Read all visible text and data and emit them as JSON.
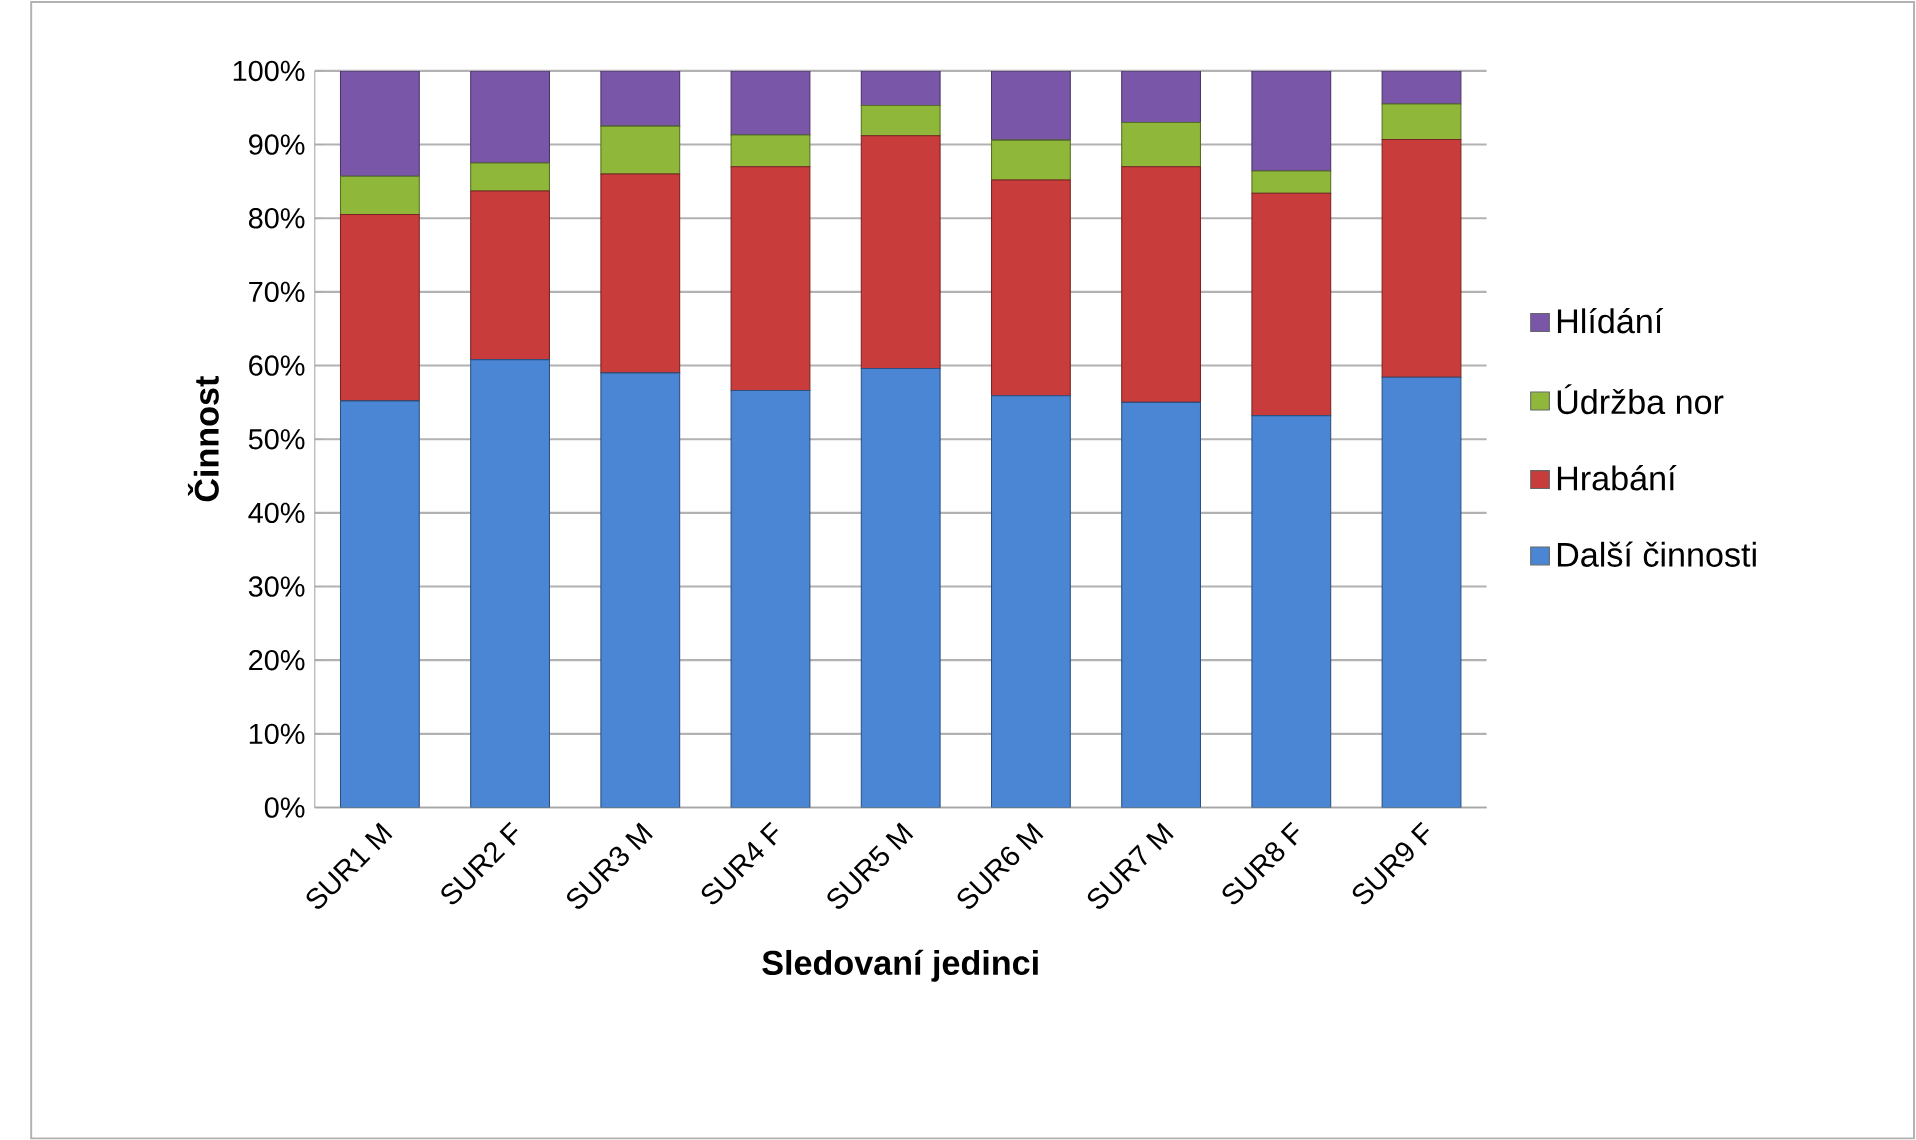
{
  "chart_data": {
    "type": "bar",
    "stacked": true,
    "xlabel": "Sledovaní jedinci",
    "ylabel": "Činnost",
    "categories": [
      "SUR1 M",
      "SUR2 F",
      "SUR3 M",
      "SUR4 F",
      "SUR5 M",
      "SUR6 M",
      "SUR7 M",
      "SUR8 F",
      "SUR9 F"
    ],
    "series": [
      {
        "name": "Další činnosti",
        "color": "#4a86d4",
        "values": [
          55.2,
          60.8,
          59,
          56.6,
          59.6,
          55.9,
          55,
          53.2,
          58.4
        ]
      },
      {
        "name": "Hrabání",
        "color": "#c83c3c",
        "values": [
          25.3,
          22.9,
          27,
          30.4,
          31.6,
          29.3,
          32,
          30.2,
          32.3
        ]
      },
      {
        "name": "Údržba nor",
        "color": "#8fb83a",
        "values": [
          5.2,
          3.8,
          6.5,
          4.3,
          4.1,
          5.4,
          6,
          3,
          4.8
        ]
      },
      {
        "name": "Hlídání",
        "color": "#7a56a8",
        "values": [
          14.3,
          12.5,
          7.5,
          8.7,
          4.7,
          9.4,
          7,
          13.6,
          4.5
        ]
      }
    ],
    "ylim": [
      0,
      100
    ],
    "yticks": [
      {
        "value": 0,
        "label": "0%"
      },
      {
        "value": 10,
        "label": "10%"
      },
      {
        "value": 20,
        "label": "20%"
      },
      {
        "value": 30,
        "label": "30%"
      },
      {
        "value": 40,
        "label": "40%"
      },
      {
        "value": 50,
        "label": "50%"
      },
      {
        "value": 60,
        "label": "60%"
      },
      {
        "value": 70,
        "label": "70%"
      },
      {
        "value": 80,
        "label": "80%"
      },
      {
        "value": 90,
        "label": "90%"
      },
      {
        "value": 100,
        "label": "100%"
      }
    ],
    "grid": "y",
    "legend": "right"
  }
}
